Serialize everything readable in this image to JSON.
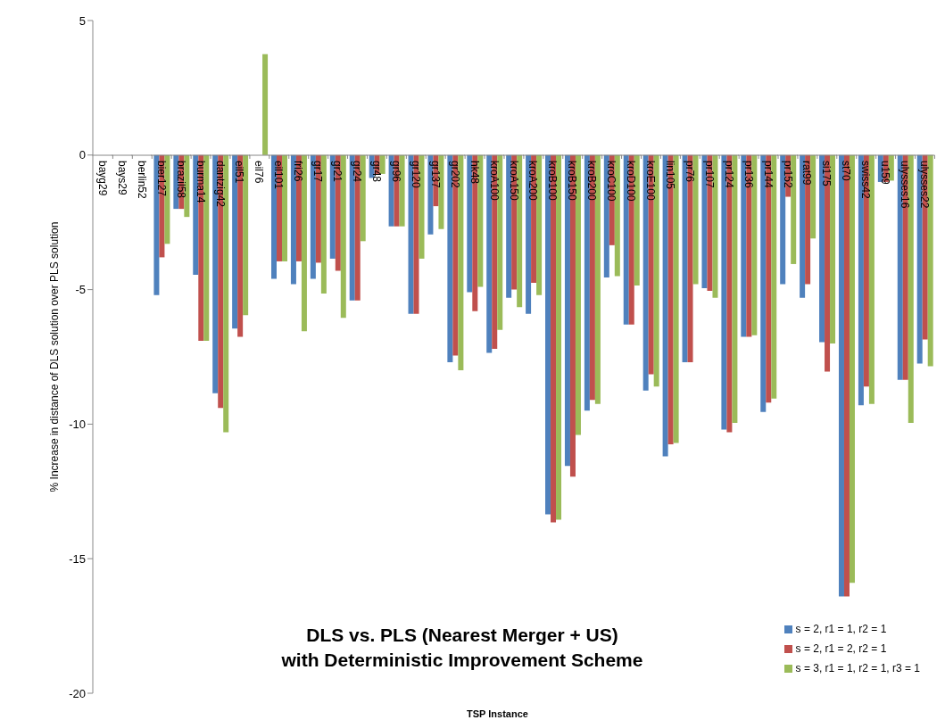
{
  "chart_data": {
    "type": "bar",
    "title": "DLS vs. PLS (Nearest Merger + US)\nwith Deterministic Improvement Scheme",
    "xlabel": "TSP Instance",
    "ylabel": "% Increase in distance of DLS solution over PLS solution",
    "categories": [
      "bayg29",
      "bays29",
      "berlin52",
      "bier127",
      "brazil58",
      "burma14",
      "dantzig42",
      "eil51",
      "eil76",
      "eil101",
      "fri26",
      "gr17",
      "gr21",
      "gr24",
      "gr48",
      "gr96",
      "gr120",
      "gr137",
      "gr202",
      "hk48",
      "kroA100",
      "kroA150",
      "kroA200",
      "kroB100",
      "kroB150",
      "kroB200",
      "kroC100",
      "kroD100",
      "kroE100",
      "lin105",
      "pr76",
      "pr107",
      "pr124",
      "pr136",
      "pr144",
      "pr152",
      "rat99",
      "si175",
      "st70",
      "swiss42",
      "u159",
      "ulysses16",
      "ulysses22"
    ],
    "series": [
      {
        "name": "s = 2, r1 = 1, r2 = 1",
        "color": "#4f81bd",
        "values": [
          0,
          0,
          0,
          -5.2,
          -2.0,
          -4.45,
          -8.85,
          -6.45,
          0,
          -4.6,
          -4.8,
          -4.6,
          -3.85,
          -5.4,
          -0.85,
          -2.65,
          -5.9,
          -2.95,
          -7.7,
          -5.1,
          -7.35,
          -5.3,
          -5.9,
          -13.35,
          -11.55,
          -9.5,
          -4.55,
          -6.3,
          -8.75,
          -11.2,
          -7.7,
          -4.95,
          -10.2,
          -6.75,
          -9.55,
          -4.8,
          -5.3,
          -6.95,
          -16.4,
          -9.3,
          -1.0,
          -8.35,
          -7.75
        ]
      },
      {
        "name": "s = 2, r1 = 2, r2 = 1",
        "color": "#c0504d",
        "values": [
          0,
          0,
          0,
          -3.8,
          -2.0,
          -6.9,
          -9.4,
          -6.75,
          0,
          -3.95,
          -3.95,
          -4.0,
          -4.3,
          -5.4,
          -0.7,
          -2.65,
          -5.9,
          -1.9,
          -7.45,
          -5.8,
          -7.2,
          -5.0,
          -4.75,
          -13.65,
          -11.95,
          -9.1,
          -3.35,
          -6.3,
          -8.15,
          -10.75,
          -7.7,
          -5.05,
          -10.3,
          -6.75,
          -9.2,
          -1.55,
          -4.8,
          -8.05,
          -16.4,
          -8.6,
          -1.0,
          -8.35,
          -6.85
        ]
      },
      {
        "name": "s = 3, r1 = 1, r2 = 1, r3 = 1",
        "color": "#9bbb59",
        "values": [
          0,
          0,
          0,
          -3.3,
          -2.3,
          -6.9,
          -10.3,
          -5.95,
          3.75,
          -3.95,
          -6.55,
          -5.15,
          -6.05,
          -3.2,
          -0.7,
          -2.65,
          -3.85,
          -2.75,
          -8.0,
          -4.9,
          -6.5,
          -5.65,
          -5.2,
          -13.55,
          -10.4,
          -9.25,
          -4.5,
          -4.85,
          -8.6,
          -10.7,
          -4.8,
          -5.3,
          -9.95,
          -6.7,
          -9.05,
          -4.05,
          -3.1,
          -7.0,
          -15.9,
          -9.25,
          -0.95,
          -9.95,
          -7.85
        ]
      }
    ],
    "ylim": [
      -20,
      5
    ],
    "yticks": [
      5,
      0,
      -5,
      -10,
      -15,
      -20
    ],
    "legend": "bottom right"
  }
}
